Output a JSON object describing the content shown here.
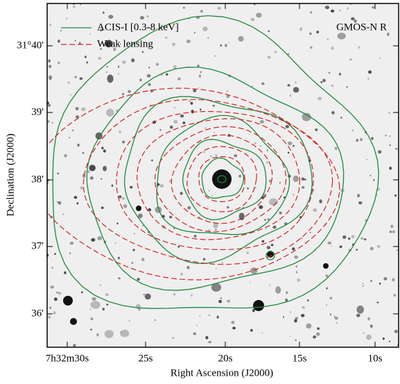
{
  "figure": {
    "legend": [
      "ACIS-I [0.3-8 keV]",
      "Weak lensing"
    ],
    "annotation": "GMOS-N R",
    "x_label": "Right Ascension (J2000)",
    "y_label": "Declination (J2000)",
    "x_tick_labels": [
      "7h32m30s",
      "25s",
      "20s",
      "15s",
      "10s"
    ],
    "y_tick_labels": [
      "31°40'",
      "39'",
      "38'",
      "37'",
      "36'"
    ]
  }
}
